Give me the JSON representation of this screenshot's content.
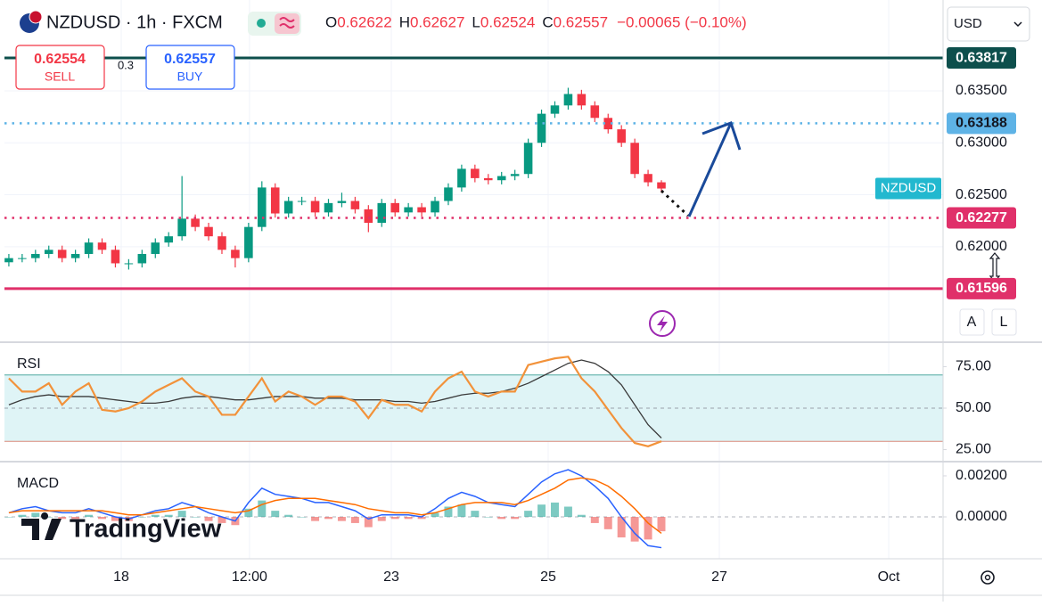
{
  "header": {
    "title": "NZDUSD · 1h · FXCM",
    "ohlc": [
      {
        "key": "O",
        "value": 0.62622
      },
      {
        "key": "H",
        "value": 0.62627
      },
      {
        "key": "L",
        "value": 0.62524
      },
      {
        "key": "C",
        "value": 0.62557
      }
    ],
    "change": "−0.00065 (−0.10%)"
  },
  "trade": {
    "sell_price": 0.62554,
    "sell": "SELL",
    "spread": 0.3,
    "buy_price": 0.62557,
    "buy": "BUY"
  },
  "currency": "USD",
  "scale_buttons": [
    "A",
    "L"
  ],
  "logo": "TradingView",
  "chart_data": [
    {
      "type": "candlestick",
      "name": "NZDUSD",
      "name_color": "#22b8cf",
      "open": [
        0.6185,
        0.6189,
        0.6189,
        0.6193,
        0.6197,
        0.6189,
        0.6193,
        0.6204,
        0.6197,
        0.6184,
        0.6184,
        0.6193,
        0.6204,
        0.621,
        0.6227,
        0.6219,
        0.621,
        0.6197,
        0.6189,
        0.6219,
        0.6257,
        0.6232,
        0.6244,
        0.6244,
        0.6233,
        0.6242,
        0.6244,
        0.6236,
        0.6223,
        0.6242,
        0.6233,
        0.6238,
        0.6233,
        0.6244,
        0.6257,
        0.6275,
        0.6266,
        0.6264,
        0.6268,
        0.627,
        0.63,
        0.6328,
        0.6336,
        0.6347,
        0.6336,
        0.6324,
        0.6313,
        0.63,
        0.627,
        0.6262
      ],
      "high": [
        0.6193,
        0.6193,
        0.6197,
        0.6201,
        0.6201,
        0.6197,
        0.6208,
        0.6208,
        0.6201,
        0.6188,
        0.6197,
        0.6208,
        0.6214,
        0.6268,
        0.6231,
        0.6223,
        0.6214,
        0.6201,
        0.6223,
        0.6263,
        0.6261,
        0.6248,
        0.6248,
        0.6248,
        0.6246,
        0.6252,
        0.6248,
        0.624,
        0.6246,
        0.6246,
        0.6242,
        0.6242,
        0.6248,
        0.6261,
        0.6279,
        0.6279,
        0.627,
        0.6272,
        0.6274,
        0.6304,
        0.6332,
        0.634,
        0.6353,
        0.6351,
        0.634,
        0.6328,
        0.6317,
        0.6304,
        0.6274,
        0.6264
      ],
      "low": [
        0.6181,
        0.6185,
        0.6185,
        0.6189,
        0.6185,
        0.6185,
        0.6189,
        0.6193,
        0.618,
        0.6178,
        0.618,
        0.6189,
        0.62,
        0.6206,
        0.6215,
        0.6206,
        0.6193,
        0.618,
        0.6185,
        0.6215,
        0.6228,
        0.6228,
        0.624,
        0.6229,
        0.6229,
        0.6238,
        0.6232,
        0.6214,
        0.6219,
        0.6229,
        0.6229,
        0.6229,
        0.6229,
        0.624,
        0.6253,
        0.6262,
        0.626,
        0.626,
        0.6264,
        0.6266,
        0.6296,
        0.6324,
        0.6332,
        0.6332,
        0.632,
        0.6309,
        0.6296,
        0.6266,
        0.6258,
        0.6252
      ],
      "close": [
        0.6189,
        0.6189,
        0.6193,
        0.6197,
        0.6189,
        0.6193,
        0.6204,
        0.6197,
        0.6184,
        0.6184,
        0.6193,
        0.6204,
        0.621,
        0.6227,
        0.6219,
        0.621,
        0.6197,
        0.6189,
        0.6219,
        0.6257,
        0.6232,
        0.6244,
        0.6244,
        0.6233,
        0.6242,
        0.6244,
        0.6236,
        0.6223,
        0.6242,
        0.6233,
        0.6238,
        0.6233,
        0.6244,
        0.6257,
        0.6275,
        0.6266,
        0.6264,
        0.6268,
        0.627,
        0.63,
        0.6328,
        0.6336,
        0.6347,
        0.6336,
        0.6324,
        0.6313,
        0.63,
        0.627,
        0.6262,
        0.6256
      ],
      "up_color": "#089981",
      "down_color": "#f23645",
      "ylim": [
        0.61089,
        0.64375
      ],
      "yticks": [
        {
          "value": 0.635,
          "label": "0.63500"
        },
        {
          "value": 0.63,
          "label": "0.63000"
        },
        {
          "value": 0.625,
          "label": "0.62500"
        },
        {
          "value": 0.62,
          "label": "0.62000"
        }
      ],
      "xlim": [
        -0.33,
        70.15
      ],
      "xticks": [
        {
          "value": 8.44,
          "label": "18"
        },
        {
          "value": 18.07,
          "label": "12:00"
        },
        {
          "value": 28.72,
          "label": "23"
        },
        {
          "value": 40.5,
          "label": "25"
        },
        {
          "value": 53.35,
          "label": "27"
        },
        {
          "value": 66.07,
          "label": "Oct"
        }
      ],
      "grid": true,
      "levels": [
        {
          "value": 0.63817,
          "color": "#0d4f4c",
          "text_color": "#ffffff",
          "style": "solid"
        },
        {
          "value": 0.63188,
          "color": "#5eb3e6",
          "text_color": "#131722",
          "style": "dotted"
        },
        {
          "value": 0.62277,
          "color": "#e0306a",
          "text_color": "#ffffff",
          "style": "dotted"
        },
        {
          "value": 0.61596,
          "color": "#e0306a",
          "text_color": "#ffffff",
          "style": "solid"
        }
      ]
    },
    {
      "type": "line",
      "title": "RSI",
      "series": [
        {
          "color": "#f2923a",
          "values": [
            68,
            60,
            60,
            65,
            52,
            60,
            65,
            49,
            48,
            50,
            54,
            60,
            64,
            68,
            60,
            57,
            46,
            46,
            57,
            68,
            54,
            60,
            57,
            52,
            57,
            57,
            54,
            44,
            55,
            52,
            52,
            48,
            60,
            68,
            72,
            60,
            57,
            60,
            60,
            76,
            78,
            80,
            81,
            68,
            60,
            49,
            38,
            29,
            27,
            30
          ]
        },
        {
          "color": "#3a3a3a",
          "values": [
            52,
            55,
            57,
            58,
            57,
            57,
            57,
            56,
            55,
            54,
            53,
            53,
            54,
            56,
            57,
            57,
            56,
            55,
            55,
            56,
            57,
            57,
            57,
            56,
            56,
            56,
            55,
            55,
            55,
            54,
            54,
            53,
            54,
            56,
            58,
            59,
            59,
            60,
            62,
            65,
            69,
            73,
            77,
            79,
            77,
            72,
            64,
            52,
            40,
            32
          ]
        }
      ],
      "ylim": [
        18.3,
        89.2
      ],
      "yticks": [
        {
          "value": 75,
          "label": "75.00"
        },
        {
          "value": 50,
          "label": "50.00"
        },
        {
          "value": 25,
          "label": "25.00"
        }
      ],
      "band": [
        30,
        70
      ],
      "band_color": "#dff4f6",
      "midline": 50
    },
    {
      "type": "macd",
      "title": "MACD",
      "histogram": [
        0,
        0.0001,
        0.0002,
        0,
        -0.0001,
        -0.0001,
        0.0001,
        -0.0001,
        -0.0002,
        -0.0002,
        0,
        0.0001,
        0.0001,
        0.0003,
        0,
        -0.0002,
        -0.0003,
        -0.0004,
        0.0004,
        0.0008,
        0.0003,
        0.0001,
        0,
        -0.0002,
        -0.0001,
        -0.0002,
        -0.0003,
        -0.0005,
        -0.0002,
        -0.0001,
        -0.0001,
        -0.0001,
        0.0002,
        0.0005,
        0.0006,
        0.0003,
        0,
        -0.0001,
        -0.0001,
        0.0003,
        0.0006,
        0.0007,
        0.0005,
        0.0001,
        -0.0003,
        -0.0006,
        -0.001,
        -0.0012,
        -0.0011,
        -0.0007
      ],
      "hist_colors": [
        "#26a69a",
        "#ef5350"
      ],
      "series": [
        {
          "color": "#2962ff",
          "values": [
            0.0002,
            0.0004,
            0.0005,
            0.0003,
            0.0002,
            0.0002,
            0.0004,
            0.0002,
            0,
            -0.0001,
            0.0001,
            0.0003,
            0.0004,
            0.0007,
            0.0005,
            0.0002,
            0,
            -0.0002,
            0.0007,
            0.0014,
            0.0011,
            0.001,
            0.0009,
            0.0007,
            0.0007,
            0.0005,
            0.0003,
            -0.0001,
            0.0001,
            0.0001,
            0.0001,
            0,
            0.0004,
            0.0009,
            0.0012,
            0.001,
            0.0007,
            0.0006,
            0.0005,
            0.0011,
            0.0017,
            0.0021,
            0.0023,
            0.002,
            0.0015,
            0.0009,
            0,
            -0.0008,
            -0.0014,
            -0.0015
          ]
        },
        {
          "color": "#ff6d00",
          "values": [
            0.0002,
            0.0003,
            0.0003,
            0.0003,
            0.0003,
            0.0003,
            0.0003,
            0.0003,
            0.0002,
            0.0001,
            0.0001,
            0.0002,
            0.0003,
            0.0004,
            0.0005,
            0.0004,
            0.0003,
            0.0002,
            0.0003,
            0.0006,
            0.0008,
            0.0009,
            0.0009,
            0.0009,
            0.0008,
            0.0007,
            0.0006,
            0.0004,
            0.0003,
            0.0002,
            0.0002,
            0.0001,
            0.0002,
            0.0004,
            0.0006,
            0.0007,
            0.0007,
            0.0007,
            0.0006,
            0.0008,
            0.0011,
            0.0014,
            0.0018,
            0.0019,
            0.0018,
            0.0015,
            0.001,
            0.0004,
            -0.0003,
            -0.0008
          ]
        }
      ],
      "ylim": [
        -0.00204,
        0.00265
      ],
      "yticks": [
        {
          "value": 0.002,
          "label": "0.00200"
        },
        {
          "value": 0,
          "label": "0.00000"
        }
      ]
    }
  ]
}
